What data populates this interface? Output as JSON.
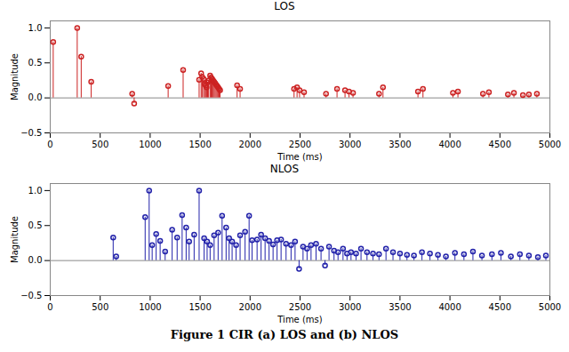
{
  "chart_data": [
    {
      "type": "stem",
      "title": "LOS",
      "xlabel": "Time (ms)",
      "ylabel": "Magnitude",
      "color": "#cc2222",
      "x": [
        30,
        270,
        310,
        410,
        820,
        840,
        1180,
        1330,
        1490,
        1510,
        1520,
        1535,
        1545,
        1555,
        1565,
        1575,
        1585,
        1600,
        1610,
        1620,
        1630,
        1640,
        1650,
        1660,
        1670,
        1680,
        1690,
        1700,
        1870,
        1900,
        2440,
        2470,
        2495,
        2540,
        2760,
        2870,
        2950,
        2990,
        3030,
        3290,
        3330,
        3680,
        3730,
        4030,
        4080,
        4330,
        4390,
        4580,
        4640,
        4730,
        4790,
        4870
      ],
      "values": [
        0.8,
        1.0,
        0.59,
        0.23,
        0.06,
        -0.08,
        0.17,
        0.4,
        0.26,
        0.35,
        0.3,
        0.27,
        0.2,
        0.18,
        0.15,
        0.22,
        0.25,
        0.32,
        0.29,
        0.27,
        0.25,
        0.23,
        0.21,
        0.19,
        0.17,
        0.15,
        0.13,
        0.11,
        0.18,
        0.13,
        0.13,
        0.15,
        0.11,
        0.08,
        0.06,
        0.13,
        0.11,
        0.09,
        0.07,
        0.06,
        0.15,
        0.09,
        0.13,
        0.07,
        0.09,
        0.06,
        0.08,
        0.05,
        0.07,
        0.04,
        0.05,
        0.06
      ],
      "xlim": [
        0,
        5000
      ],
      "ylim": [
        -0.5,
        1.1
      ],
      "xticks": [
        0,
        500,
        1000,
        1500,
        2000,
        2500,
        3000,
        3500,
        4000,
        4500,
        5000
      ],
      "yticks": [
        -0.5,
        0,
        0.5,
        1
      ],
      "grid": false
    },
    {
      "type": "stem",
      "title": "NLOS",
      "xlabel": "Time (ms)",
      "ylabel": "Magnitude",
      "color": "#2222aa",
      "x": [
        630,
        660,
        950,
        990,
        1020,
        1060,
        1100,
        1150,
        1220,
        1270,
        1320,
        1360,
        1390,
        1440,
        1490,
        1540,
        1570,
        1600,
        1640,
        1680,
        1720,
        1760,
        1790,
        1820,
        1860,
        1900,
        1950,
        1990,
        2020,
        2070,
        2110,
        2150,
        2190,
        2230,
        2270,
        2310,
        2360,
        2410,
        2450,
        2490,
        2530,
        2570,
        2610,
        2660,
        2710,
        2750,
        2790,
        2840,
        2880,
        2930,
        2970,
        3010,
        3060,
        3110,
        3170,
        3230,
        3290,
        3360,
        3430,
        3500,
        3570,
        3640,
        3720,
        3800,
        3880,
        3960,
        4050,
        4140,
        4230,
        4320,
        4420,
        4510,
        4610,
        4700,
        4790,
        4880,
        4960
      ],
      "values": [
        0.33,
        0.06,
        0.62,
        1.0,
        0.22,
        0.38,
        0.28,
        0.13,
        0.44,
        0.33,
        0.65,
        0.47,
        0.27,
        0.37,
        1.0,
        0.32,
        0.27,
        0.22,
        0.36,
        0.4,
        0.64,
        0.47,
        0.32,
        0.27,
        0.22,
        0.36,
        0.41,
        0.64,
        0.29,
        0.3,
        0.37,
        0.32,
        0.28,
        0.23,
        0.29,
        0.3,
        0.24,
        0.22,
        0.27,
        -0.12,
        0.2,
        0.17,
        0.22,
        0.24,
        0.17,
        -0.07,
        0.2,
        0.14,
        0.12,
        0.17,
        0.1,
        0.12,
        0.1,
        0.17,
        0.12,
        0.1,
        0.09,
        0.17,
        0.12,
        0.1,
        0.08,
        0.07,
        0.12,
        0.1,
        0.08,
        0.06,
        0.11,
        0.09,
        0.13,
        0.07,
        0.09,
        0.11,
        0.06,
        0.09,
        0.07,
        0.05,
        0.07
      ],
      "xlim": [
        0,
        5000
      ],
      "ylim": [
        -0.5,
        1.1
      ],
      "xticks": [
        0,
        500,
        1000,
        1500,
        2000,
        2500,
        3000,
        3500,
        4000,
        4500,
        5000
      ],
      "yticks": [
        -0.5,
        0,
        0.5,
        1
      ],
      "grid": false
    }
  ],
  "caption": "Figure 1 CIR (a) LOS and (b) NLOS"
}
